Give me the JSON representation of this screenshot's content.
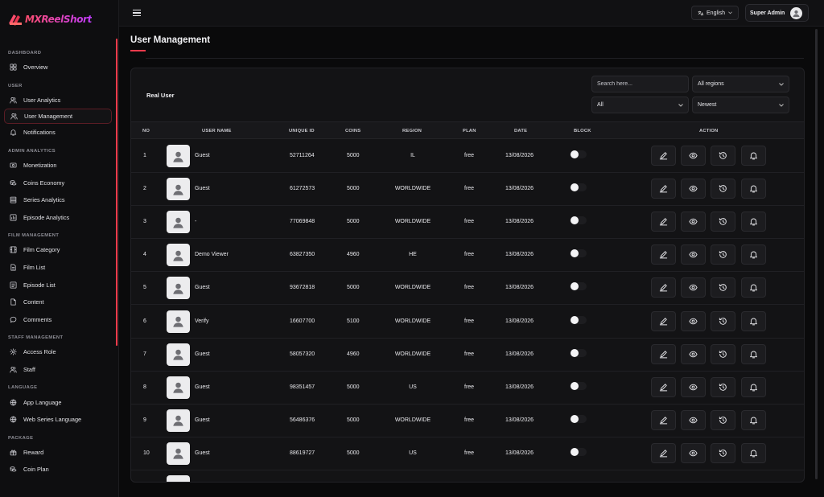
{
  "app": {
    "logo_text": "MXReelShort"
  },
  "topbar": {
    "language": "English",
    "user": "Super Admin"
  },
  "sidebar": {
    "sections": [
      {
        "title": "DASHBOARD",
        "items": [
          {
            "label": "Overview",
            "icon": "grid-icon"
          }
        ]
      },
      {
        "title": "USER",
        "items": [
          {
            "label": "User Analytics",
            "icon": "users-icon"
          },
          {
            "label": "User Management",
            "icon": "users-icon",
            "active": true
          },
          {
            "label": "Notifications",
            "icon": "bell-icon"
          }
        ]
      },
      {
        "title": "ADMIN ANALYTICS",
        "items": [
          {
            "label": "Monetization",
            "icon": "monetization-icon"
          },
          {
            "label": "Coins Economy",
            "icon": "coins-icon"
          },
          {
            "label": "Series Analytics",
            "icon": "layers-icon"
          },
          {
            "label": "Episode Analytics",
            "icon": "chart-icon"
          }
        ]
      },
      {
        "title": "FILM MANAGEMENT",
        "items": [
          {
            "label": "Film Category",
            "icon": "film-icon"
          },
          {
            "label": "Film List",
            "icon": "file-icon"
          },
          {
            "label": "Episode List",
            "icon": "list-icon"
          },
          {
            "label": "Content",
            "icon": "document-icon"
          },
          {
            "label": "Comments",
            "icon": "comment-icon"
          }
        ]
      },
      {
        "title": "STAFF MANAGEMENT",
        "items": [
          {
            "label": "Access Role",
            "icon": "gear-icon"
          },
          {
            "label": "Staff",
            "icon": "users-icon"
          }
        ]
      },
      {
        "title": "LANGUAGE",
        "items": [
          {
            "label": "App Language",
            "icon": "globe-icon"
          },
          {
            "label": "Web Series Language",
            "icon": "globe-icon"
          }
        ]
      },
      {
        "title": "PACKAGE",
        "items": [
          {
            "label": "Reward",
            "icon": "reward-icon"
          },
          {
            "label": "Coin Plan",
            "icon": "coins-icon"
          }
        ]
      }
    ]
  },
  "page": {
    "title": "User Management"
  },
  "card": {
    "title": "Real User",
    "search_placeholder": "Search here...",
    "region_filter": "All regions",
    "plan_filter": "All",
    "sort_filter": "Newest"
  },
  "table": {
    "headers": {
      "no": "NO",
      "user_name": "USER NAME",
      "unique_id": "UNIQUE ID",
      "coins": "COINS",
      "region": "REGION",
      "plan": "PLAN",
      "date": "DATE",
      "block": "BLOCK",
      "action": "ACTION"
    },
    "rows": [
      {
        "no": "1",
        "name": "Guest",
        "uid": "52711264",
        "coins": "5000",
        "region": "IL",
        "plan": "free",
        "date": "13/08/2026"
      },
      {
        "no": "2",
        "name": "Guest",
        "uid": "61272573",
        "coins": "5000",
        "region": "WORLDWIDE",
        "plan": "free",
        "date": "13/08/2026"
      },
      {
        "no": "3",
        "name": "-",
        "uid": "77069848",
        "coins": "5000",
        "region": "WORLDWIDE",
        "plan": "free",
        "date": "13/08/2026"
      },
      {
        "no": "4",
        "name": "Demo Viewer",
        "uid": "63827350",
        "coins": "4960",
        "region": "HE",
        "plan": "free",
        "date": "13/08/2026"
      },
      {
        "no": "5",
        "name": "Guest",
        "uid": "93672818",
        "coins": "5000",
        "region": "WORLDWIDE",
        "plan": "free",
        "date": "13/08/2026"
      },
      {
        "no": "6",
        "name": "Verify",
        "uid": "16607700",
        "coins": "5100",
        "region": "WORLDWIDE",
        "plan": "free",
        "date": "13/08/2026"
      },
      {
        "no": "7",
        "name": "Guest",
        "uid": "58057320",
        "coins": "4960",
        "region": "WORLDWIDE",
        "plan": "free",
        "date": "13/08/2026"
      },
      {
        "no": "8",
        "name": "Guest",
        "uid": "98351457",
        "coins": "5000",
        "region": "US",
        "plan": "free",
        "date": "13/08/2026"
      },
      {
        "no": "9",
        "name": "Guest",
        "uid": "56486376",
        "coins": "5000",
        "region": "WORLDWIDE",
        "plan": "free",
        "date": "13/08/2026"
      },
      {
        "no": "10",
        "name": "Guest",
        "uid": "88619727",
        "coins": "5000",
        "region": "US",
        "plan": "free",
        "date": "13/08/2026"
      }
    ]
  },
  "colors": {
    "accent": "#ff3b4c",
    "background": "#0a0a0b",
    "panel": "#131315"
  }
}
